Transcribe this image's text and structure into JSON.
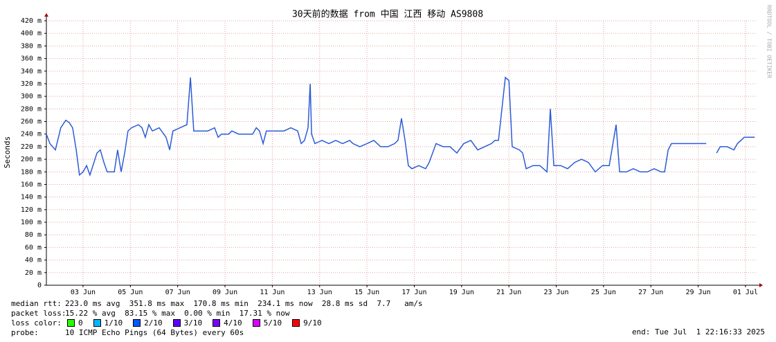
{
  "chart_data": {
    "type": "line",
    "title": "30天前的数据 from 中国 江西 移动 AS9808",
    "y_label": "Seconds",
    "color": "#2a5bd7",
    "grid": true,
    "xlim": [
      1.45,
      31.47
    ],
    "xticks": [
      {
        "value": 3,
        "label": "03 Jun"
      },
      {
        "value": 5,
        "label": "05 Jun"
      },
      {
        "value": 7,
        "label": "07 Jun"
      },
      {
        "value": 9,
        "label": "09 Jun"
      },
      {
        "value": 11,
        "label": "11 Jun"
      },
      {
        "value": 13,
        "label": "13 Jun"
      },
      {
        "value": 15,
        "label": "15 Jun"
      },
      {
        "value": 17,
        "label": "17 Jun"
      },
      {
        "value": 19,
        "label": "19 Jun"
      },
      {
        "value": 21,
        "label": "21 Jun"
      },
      {
        "value": 23,
        "label": "23 Jun"
      },
      {
        "value": 25,
        "label": "25 Jun"
      },
      {
        "value": 27,
        "label": "27 Jun"
      },
      {
        "value": 29,
        "label": "29 Jun"
      },
      {
        "value": 31,
        "label": "01 Jul"
      }
    ],
    "ylim": [
      0,
      0.42
    ],
    "yticks": [
      0,
      {
        "value": 0.02,
        "label": "20 m"
      },
      {
        "value": 0.04,
        "label": "40 m"
      },
      {
        "value": 0.06,
        "label": "60 m"
      },
      {
        "value": 0.08,
        "label": "80 m"
      },
      {
        "value": 0.1,
        "label": "100 m"
      },
      {
        "value": 0.12,
        "label": "120 m"
      },
      {
        "value": 0.14,
        "label": "140 m"
      },
      {
        "value": 0.16,
        "label": "160 m"
      },
      {
        "value": 0.18,
        "label": "180 m"
      },
      {
        "value": 0.2,
        "label": "200 m"
      },
      {
        "value": 0.22,
        "label": "220 m"
      },
      {
        "value": 0.24,
        "label": "240 m"
      },
      {
        "value": 0.26,
        "label": "260 m"
      },
      {
        "value": 0.28,
        "label": "280 m"
      },
      {
        "value": 0.3,
        "label": "300 m"
      },
      {
        "value": 0.32,
        "label": "320 m"
      },
      {
        "value": 0.34,
        "label": "340 m"
      },
      {
        "value": 0.36,
        "label": "360 m"
      },
      {
        "value": 0.38,
        "label": "380 m"
      },
      {
        "value": 0.4,
        "label": "400 m"
      },
      {
        "value": 0.42,
        "label": "420 m"
      }
    ],
    "x": [
      1.45,
      1.6,
      1.83,
      2.06,
      2.27,
      2.42,
      2.56,
      2.71,
      2.85,
      3.0,
      3.15,
      3.29,
      3.59,
      3.73,
      3.88,
      4.02,
      4.32,
      4.46,
      4.61,
      4.76,
      4.9,
      5.05,
      5.34,
      5.49,
      5.63,
      5.78,
      5.93,
      6.22,
      6.51,
      6.66,
      6.8,
      7.1,
      7.39,
      7.54,
      7.68,
      7.97,
      8.27,
      8.56,
      8.71,
      8.85,
      9.15,
      9.29,
      9.58,
      9.88,
      10.17,
      10.32,
      10.46,
      10.61,
      10.75,
      11.05,
      11.49,
      11.78,
      12.07,
      12.22,
      12.36,
      12.51,
      12.6,
      12.66,
      12.8,
      13.1,
      13.39,
      13.68,
      13.97,
      14.27,
      14.41,
      14.7,
      15.0,
      15.29,
      15.58,
      15.88,
      16.17,
      16.31,
      16.46,
      16.61,
      16.75,
      16.9,
      17.19,
      17.48,
      17.63,
      17.92,
      18.22,
      18.51,
      18.8,
      19.09,
      19.39,
      19.68,
      19.97,
      20.26,
      20.41,
      20.56,
      20.85,
      21.0,
      21.14,
      21.44,
      21.58,
      21.73,
      22.02,
      22.31,
      22.61,
      22.75,
      22.9,
      23.19,
      23.48,
      23.78,
      24.07,
      24.36,
      24.65,
      24.95,
      25.24,
      25.53,
      25.68,
      25.97,
      26.26,
      26.56,
      26.85,
      27.14,
      27.43,
      27.58,
      27.73,
      27.87,
      28.17,
      28.46,
      28.76,
      29.05,
      29.34,
      29.55,
      29.78,
      29.93,
      30.22,
      30.51,
      30.66,
      30.95,
      31.39
    ],
    "values": [
      0.24,
      0.225,
      0.215,
      0.25,
      0.262,
      0.258,
      0.25,
      0.215,
      0.175,
      0.18,
      0.19,
      0.175,
      0.21,
      0.215,
      0.195,
      0.18,
      0.18,
      0.215,
      0.18,
      0.21,
      0.245,
      0.25,
      0.255,
      0.25,
      0.235,
      0.255,
      0.245,
      0.25,
      0.235,
      0.215,
      0.245,
      0.25,
      0.255,
      0.33,
      0.245,
      0.245,
      0.245,
      0.25,
      0.235,
      0.24,
      0.24,
      0.245,
      0.24,
      0.24,
      0.24,
      0.25,
      0.245,
      0.225,
      0.245,
      0.245,
      0.245,
      0.25,
      0.245,
      0.225,
      0.23,
      0.25,
      0.32,
      0.24,
      0.225,
      0.23,
      0.225,
      0.23,
      0.225,
      0.23,
      0.225,
      0.22,
      0.225,
      0.23,
      0.22,
      0.22,
      0.225,
      0.23,
      0.265,
      0.23,
      0.19,
      0.185,
      0.19,
      0.185,
      0.195,
      0.225,
      0.22,
      0.22,
      0.21,
      0.225,
      0.23,
      0.215,
      0.22,
      0.225,
      0.23,
      0.23,
      0.33,
      0.325,
      0.22,
      0.215,
      0.21,
      0.185,
      0.19,
      0.19,
      0.18,
      0.28,
      0.19,
      0.19,
      0.185,
      0.195,
      0.2,
      0.195,
      0.18,
      0.19,
      0.19,
      0.255,
      0.18,
      0.18,
      0.185,
      0.18,
      0.18,
      0.185,
      0.18,
      0.18,
      0.215,
      0.225,
      0.225,
      0.225,
      0.225,
      0.225,
      0.225,
      null,
      0.21,
      0.22,
      0.22,
      0.215,
      0.225,
      0.235,
      0.235
    ]
  },
  "watermark": "RRDTOOL / TOBI OETIKER",
  "legend": {
    "rtt": {
      "label": "median rtt:",
      "text": "223.0 ms avg  351.8 ms max  170.8 ms min  234.1 ms now  28.8 ms sd  7.7   am/s"
    },
    "loss": {
      "label": "packet loss:",
      "text": "15.22 % avg  83.15 % max  0.00 % min  17.31 % now"
    },
    "loss_color": {
      "label": "loss color:",
      "items": [
        {
          "name": "0",
          "color": "#26ff00"
        },
        {
          "name": "1/10",
          "color": "#00b8ff"
        },
        {
          "name": "2/10",
          "color": "#0059ff"
        },
        {
          "name": "3/10",
          "color": "#5e00ff"
        },
        {
          "name": "4/10",
          "color": "#7e00ff"
        },
        {
          "name": "5/10",
          "color": "#dd00ff"
        },
        {
          "name": "9/10",
          "color": "#ff0000"
        }
      ]
    },
    "probe": {
      "label": "probe:",
      "text": "10 ICMP Echo Pings (64 Bytes) every 60s"
    },
    "end": "end: Tue Jul  1 22:16:33 2025"
  }
}
